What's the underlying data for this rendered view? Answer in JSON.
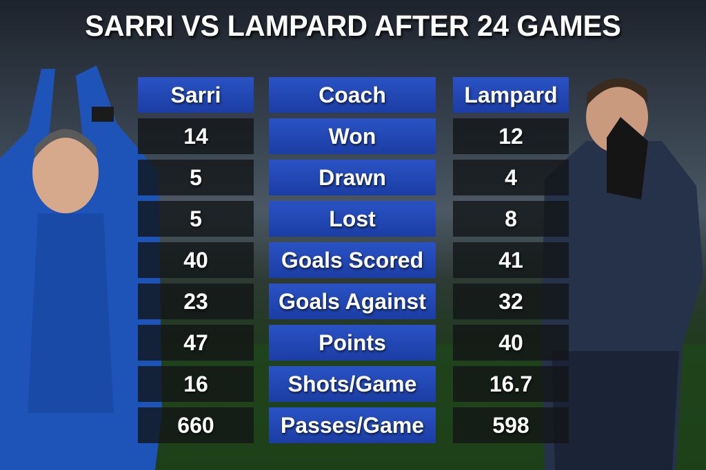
{
  "title": "SARRI VS LAMPARD AFTER 24 GAMES",
  "table": {
    "header": [
      "Sarri",
      "Coach",
      "Lampard"
    ],
    "rows": [
      [
        14,
        "Won",
        12
      ],
      [
        5,
        "Drawn",
        4
      ],
      [
        5,
        "Lost",
        8
      ],
      [
        40,
        "Goals Scored",
        41
      ],
      [
        23,
        "Goals Against",
        32
      ],
      [
        47,
        "Points",
        40
      ],
      [
        16,
        "Shots/Game",
        16.7
      ],
      [
        660,
        "Passes/Game",
        598
      ]
    ]
  }
}
